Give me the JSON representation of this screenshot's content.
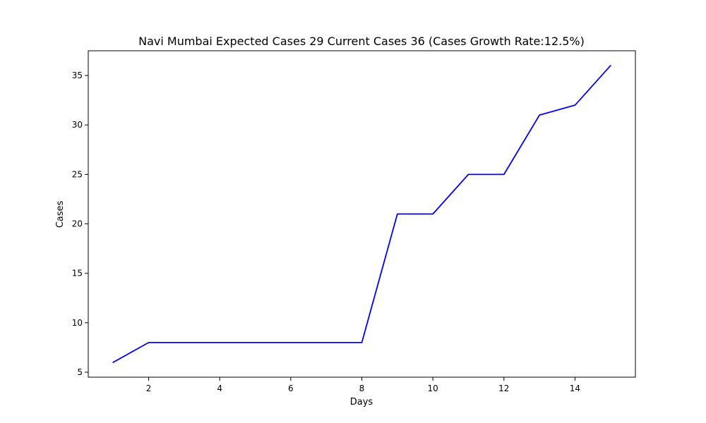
{
  "chart_data": {
    "type": "line",
    "title": "Navi Mumbai Expected Cases 29 Current Cases 36 (Cases Growth Rate:12.5%)",
    "xlabel": "Days",
    "ylabel": "Cases",
    "x": [
      1,
      2,
      3,
      4,
      5,
      6,
      7,
      8,
      9,
      10,
      11,
      12,
      13,
      14,
      15
    ],
    "series": [
      {
        "values": [
          6,
          8,
          8,
          8,
          8,
          8,
          8,
          8,
          21,
          21,
          25,
          25,
          31,
          32,
          36
        ],
        "color": "#0000ff"
      }
    ],
    "xlim": [
      0.3,
      15.7
    ],
    "ylim": [
      4.5,
      37.5
    ],
    "xticks": [
      2,
      4,
      6,
      8,
      10,
      12,
      14
    ],
    "yticks": [
      5,
      10,
      15,
      20,
      25,
      30,
      35
    ],
    "grid": false,
    "legend": "none"
  }
}
